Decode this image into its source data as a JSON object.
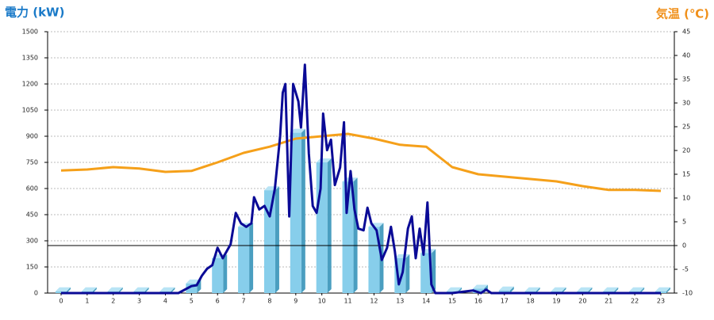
{
  "chart_data": {
    "type": "combo",
    "y_title": "電力 (kW)",
    "y2_title": "気温 (℃)",
    "categories": [
      "0",
      "1",
      "2",
      "3",
      "4",
      "5",
      "6",
      "7",
      "8",
      "9",
      "10",
      "11",
      "12",
      "13",
      "14",
      "15",
      "16",
      "17",
      "18",
      "19",
      "20",
      "21",
      "22",
      "23"
    ],
    "ylim": [
      0,
      1500
    ],
    "yticks": [
      0,
      150,
      300,
      450,
      600,
      750,
      900,
      1050,
      1200,
      1350,
      1500
    ],
    "y2lim": [
      -10,
      45
    ],
    "y2ticks": [
      -10,
      -5,
      0,
      5,
      10,
      15,
      20,
      25,
      30,
      35,
      40,
      45
    ],
    "grid": true,
    "series": [
      {
        "type": "bar",
        "color": "#87ceeb",
        "values": [
          10,
          10,
          10,
          10,
          10,
          55,
          200,
          380,
          590,
          920,
          750,
          640,
          380,
          200,
          230,
          10,
          25,
          15,
          10,
          10,
          10,
          10,
          10,
          10
        ]
      },
      {
        "type": "line",
        "color": "#0a0a96",
        "x": [
          0,
          4.5,
          5,
          5.2,
          5.4,
          5.6,
          5.8,
          6,
          6.2,
          6.5,
          6.7,
          6.9,
          7.1,
          7.3,
          7.4,
          7.6,
          7.8,
          8,
          8.2,
          8.4,
          8.5,
          8.6,
          8.75,
          8.9,
          9.1,
          9.2,
          9.35,
          9.5,
          9.65,
          9.8,
          9.95,
          10.05,
          10.2,
          10.35,
          10.5,
          10.7,
          10.85,
          10.95,
          11.1,
          11.25,
          11.4,
          11.6,
          11.75,
          11.9,
          12.1,
          12.3,
          12.5,
          12.65,
          12.8,
          12.95,
          13.1,
          13.3,
          13.45,
          13.6,
          13.75,
          13.9,
          14.05,
          14.2,
          14.35,
          15,
          15.8,
          16,
          16.1,
          16.3,
          16.5,
          17,
          23
        ],
        "values": [
          0,
          0,
          40,
          45,
          100,
          140,
          160,
          260,
          200,
          280,
          460,
          400,
          380,
          400,
          550,
          480,
          500,
          440,
          600,
          900,
          1150,
          1200,
          440,
          1200,
          1100,
          950,
          1310,
          800,
          500,
          460,
          600,
          1030,
          820,
          880,
          620,
          720,
          980,
          460,
          700,
          480,
          370,
          360,
          490,
          400,
          360,
          190,
          260,
          380,
          240,
          50,
          120,
          370,
          440,
          200,
          370,
          220,
          520,
          50,
          0,
          0,
          15,
          5,
          0,
          20,
          0,
          0,
          0
        ]
      },
      {
        "type": "line",
        "axis": "y2",
        "color": "#f5a01a",
        "values": [
          15.8,
          16,
          16.5,
          16.2,
          15.5,
          15.7,
          17.5,
          19.5,
          20.8,
          22.5,
          23,
          23.5,
          22.5,
          21.2,
          20.8,
          16.5,
          15,
          14.5,
          14,
          13.5,
          12.5,
          11.7,
          11.7,
          11.5
        ]
      }
    ]
  }
}
